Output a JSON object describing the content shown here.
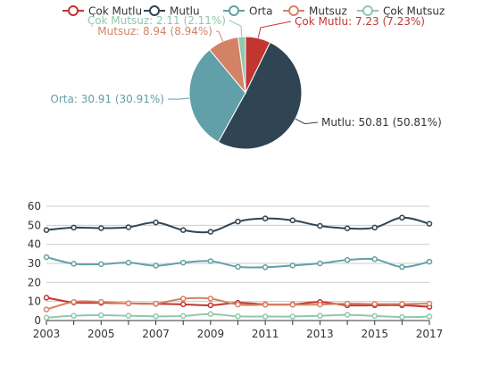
{
  "colors": {
    "Çok Mutlu": "#c23531",
    "Mutlu": "#2f4554",
    "Orta": "#61a0a8",
    "Mutsuz": "#d48265",
    "Çok Mutsuz": "#91c7ae",
    "axis": "#333333",
    "grid": "#cccccc"
  },
  "chart_data": [
    {
      "type": "pie",
      "legend": [
        "Çok Mutlu",
        "Mutlu",
        "Orta",
        "Mutsuz",
        "Çok Mutsuz"
      ],
      "legend_position": "top",
      "slices": [
        {
          "name": "Çok Mutlu",
          "value": 7.23,
          "label": "Çok Mutlu: 7.23 (7.23%)"
        },
        {
          "name": "Mutlu",
          "value": 50.81,
          "label": "Mutlu: 50.81 (50.81%)"
        },
        {
          "name": "Orta",
          "value": 30.91,
          "label": "Orta: 30.91 (30.91%)"
        },
        {
          "name": "Mutsuz",
          "value": 8.94,
          "label": "Mutsuz: 8.94 (8.94%)"
        },
        {
          "name": "Çok Mutsuz",
          "value": 2.11,
          "label": "Çok Mutsuz: 2.11 (2.11%)"
        }
      ]
    },
    {
      "type": "line",
      "x": [
        2003,
        2004,
        2005,
        2006,
        2007,
        2008,
        2009,
        2010,
        2011,
        2012,
        2013,
        2014,
        2015,
        2016,
        2017
      ],
      "x_tick_labels": [
        "2003",
        "2005",
        "2007",
        "2009",
        "2011",
        "2013",
        "2015",
        "2017"
      ],
      "ylim": [
        0,
        60
      ],
      "y_ticks": [
        0,
        10,
        20,
        30,
        40,
        50,
        60
      ],
      "grid": true,
      "smooth": true,
      "series": [
        {
          "name": "Çok Mutlu",
          "values": [
            12.0,
            9.5,
            9.3,
            9.0,
            8.8,
            8.5,
            8.0,
            9.3,
            8.5,
            8.5,
            9.7,
            8.0,
            8.0,
            8.0,
            7.2
          ]
        },
        {
          "name": "Mutlu",
          "values": [
            47.5,
            48.8,
            48.5,
            49.0,
            51.5,
            47.5,
            46.6,
            52.0,
            53.6,
            52.6,
            49.7,
            48.4,
            48.8,
            54.0,
            50.8
          ]
        },
        {
          "name": "Orta",
          "values": [
            33.3,
            29.8,
            29.6,
            30.4,
            28.8,
            30.4,
            31.2,
            28.2,
            28.0,
            28.9,
            30.0,
            31.8,
            32.2,
            28.1,
            30.9
          ]
        },
        {
          "name": "Mutsuz",
          "values": [
            5.8,
            9.8,
            9.8,
            9.0,
            8.9,
            11.5,
            11.5,
            8.4,
            8.3,
            8.3,
            8.4,
            8.9,
            8.7,
            8.7,
            8.9
          ]
        },
        {
          "name": "Çok Mutsuz",
          "values": [
            1.5,
            2.5,
            2.8,
            2.5,
            2.2,
            2.4,
            3.4,
            2.2,
            2.1,
            2.1,
            2.5,
            3.0,
            2.4,
            1.8,
            2.1
          ]
        }
      ]
    }
  ]
}
